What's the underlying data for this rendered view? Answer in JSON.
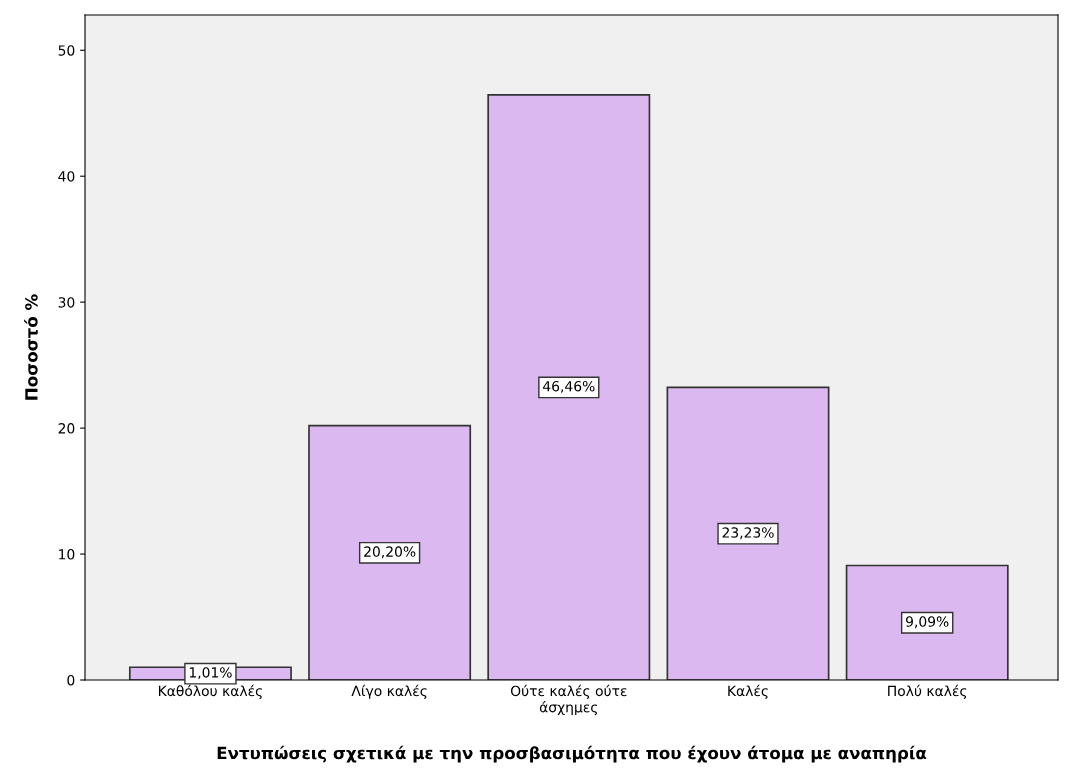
{
  "chart_data": {
    "type": "bar",
    "xlabel": "Εντυπώσεις σχετικά με την προσβασιμότητα που έχουν άτομα με αναπηρία",
    "ylabel": "Ποσοστό %",
    "categories": [
      "Καθόλου καλές",
      "Λίγο καλές",
      "Ούτε καλές ούτε\nάσχημες",
      "Καλές",
      "Πολύ καλές"
    ],
    "values": [
      1.01,
      20.2,
      46.46,
      23.23,
      9.09
    ],
    "value_labels": [
      "1,01%",
      "20,20%",
      "46,46%",
      "23,23%",
      "9,09%"
    ],
    "color": "#dcb8f0",
    "ylim": [
      0,
      52.8
    ],
    "yticks": [
      0,
      10,
      20,
      30,
      40,
      50
    ],
    "grid": false
  }
}
